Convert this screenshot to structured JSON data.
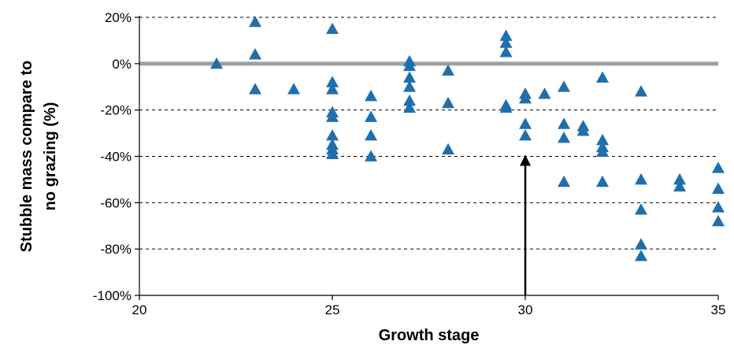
{
  "chart_data": {
    "type": "scatter",
    "title": "",
    "xlabel": "Growth stage",
    "ylabel_lines": [
      "Stubble mass compare to",
      "no grazing (%)"
    ],
    "xlim": [
      20,
      35
    ],
    "ylim": [
      -100,
      20
    ],
    "x_ticks": [
      20,
      25,
      30,
      35
    ],
    "y_ticks": [
      20,
      0,
      -20,
      -40,
      -60,
      -80,
      -100
    ],
    "y_tick_labels": [
      "20%",
      "0%",
      "-20%",
      "-40%",
      "-60%",
      "-80%",
      "-100%"
    ],
    "grid": "horizontal dashed",
    "reference_line_y": 0,
    "marker": "triangle",
    "marker_color": "#1f6fad",
    "reference_color": "#a0a0a0",
    "annotation_arrow": {
      "x": 30,
      "y_from": -100,
      "y_to": -40
    },
    "points": [
      {
        "x": 22,
        "y": 0
      },
      {
        "x": 23,
        "y": 18
      },
      {
        "x": 23,
        "y": 4
      },
      {
        "x": 23,
        "y": -11
      },
      {
        "x": 24,
        "y": -11
      },
      {
        "x": 25,
        "y": 15
      },
      {
        "x": 25,
        "y": -8
      },
      {
        "x": 25,
        "y": -11
      },
      {
        "x": 25,
        "y": -21
      },
      {
        "x": 25,
        "y": -23
      },
      {
        "x": 25,
        "y": -31
      },
      {
        "x": 25,
        "y": -35
      },
      {
        "x": 25,
        "y": -37
      },
      {
        "x": 25,
        "y": -39
      },
      {
        "x": 26,
        "y": -14
      },
      {
        "x": 26,
        "y": -23
      },
      {
        "x": 26,
        "y": -31
      },
      {
        "x": 26,
        "y": -40
      },
      {
        "x": 27,
        "y": 1
      },
      {
        "x": 27,
        "y": -1
      },
      {
        "x": 27,
        "y": -6
      },
      {
        "x": 27,
        "y": -10
      },
      {
        "x": 27,
        "y": -16
      },
      {
        "x": 27,
        "y": -19
      },
      {
        "x": 28,
        "y": -3
      },
      {
        "x": 28,
        "y": -17
      },
      {
        "x": 28,
        "y": -37
      },
      {
        "x": 29.5,
        "y": 12
      },
      {
        "x": 29.5,
        "y": 9
      },
      {
        "x": 29.5,
        "y": 5
      },
      {
        "x": 29.5,
        "y": -18
      },
      {
        "x": 29.5,
        "y": -19
      },
      {
        "x": 30,
        "y": -13
      },
      {
        "x": 30,
        "y": -15
      },
      {
        "x": 30,
        "y": -26
      },
      {
        "x": 30,
        "y": -31
      },
      {
        "x": 30.5,
        "y": -13
      },
      {
        "x": 31,
        "y": -10
      },
      {
        "x": 31,
        "y": -26
      },
      {
        "x": 31,
        "y": -32
      },
      {
        "x": 31,
        "y": -51
      },
      {
        "x": 31.5,
        "y": -27
      },
      {
        "x": 31.5,
        "y": -29
      },
      {
        "x": 32,
        "y": -6
      },
      {
        "x": 32,
        "y": -33
      },
      {
        "x": 32,
        "y": -36
      },
      {
        "x": 32,
        "y": -38
      },
      {
        "x": 32,
        "y": -51
      },
      {
        "x": 33,
        "y": -12
      },
      {
        "x": 33,
        "y": -50
      },
      {
        "x": 33,
        "y": -63
      },
      {
        "x": 33,
        "y": -78
      },
      {
        "x": 33,
        "y": -83
      },
      {
        "x": 34,
        "y": -50
      },
      {
        "x": 34,
        "y": -53
      },
      {
        "x": 35,
        "y": -45
      },
      {
        "x": 35,
        "y": -54
      },
      {
        "x": 35,
        "y": -62
      },
      {
        "x": 35,
        "y": -68
      }
    ]
  }
}
